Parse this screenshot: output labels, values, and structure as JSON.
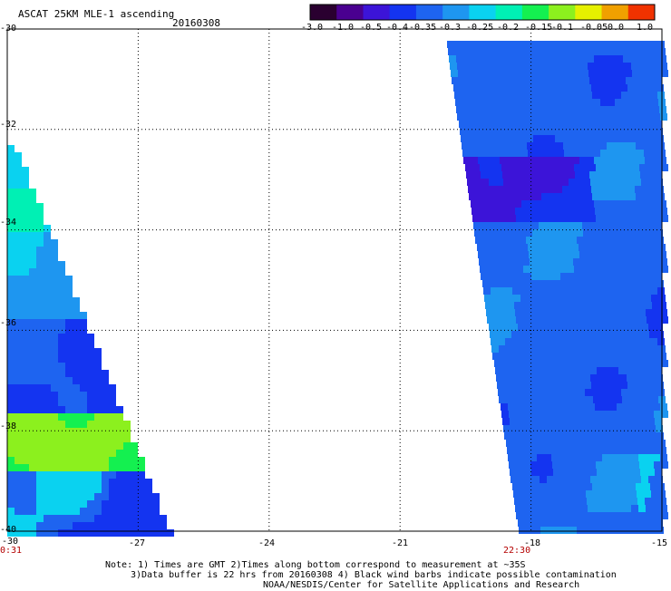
{
  "header": {
    "title": "ASCAT 25KM MLE-1 ascending",
    "date": "20160308"
  },
  "colorbar": {
    "labels": [
      "-3.0",
      "-1.0",
      "-0.5",
      "-0.4",
      "-0.35",
      "-0.3",
      "-0.25",
      "-0.2",
      "-0.15",
      "-0.1",
      "-0.05",
      "0.0",
      "1.0"
    ],
    "colors": [
      "#2a0030",
      "#4a0090",
      "#3c14d8",
      "#1434f0",
      "#1e64f0",
      "#1e96f0",
      "#0ad2f0",
      "#00f0b4",
      "#14f050",
      "#8cf01e",
      "#e6f000",
      "#f0a000",
      "#f03200"
    ]
  },
  "map": {
    "lon_min": -30,
    "lon_max": -15,
    "lat_min": -40,
    "lat_max": -30,
    "x_ticks": [
      "-30",
      "-27",
      "-24",
      "-21",
      "-18",
      "-15"
    ],
    "y_ticks": [
      "-30",
      "-32",
      "-34",
      "-36",
      "-38",
      "-40"
    ],
    "time_labels": [
      "0:31",
      "22:30"
    ]
  },
  "notes": [
    "Note: 1) Times are GMT 2)Times along bottom correspond to measurement at ~35S",
    "3)Data buffer is 22 hrs from 20160308 4) Black wind barbs indicate possible contamination",
    "NOAA/NESDIS/Center for Satellite Applications and Research"
  ]
}
